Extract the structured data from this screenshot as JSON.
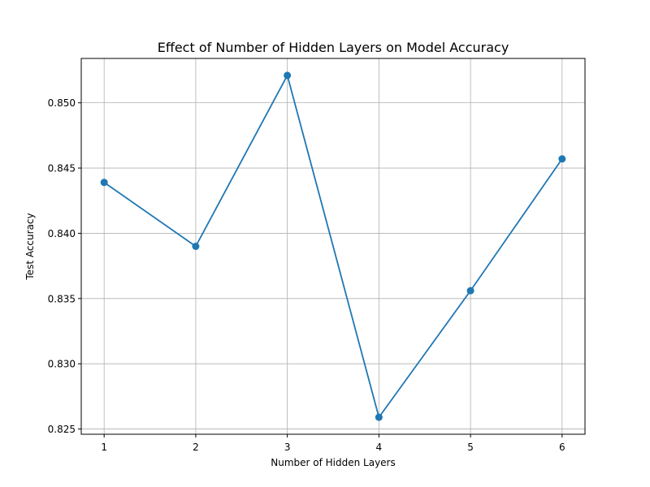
{
  "chart_data": {
    "type": "line",
    "title": "Effect of Number of Hidden Layers on Model Accuracy",
    "xlabel": "Number of Hidden Layers",
    "ylabel": "Test Accuracy",
    "x": [
      1,
      2,
      3,
      4,
      5,
      6
    ],
    "series": [
      {
        "values": [
          0.8439,
          0.839,
          0.8521,
          0.8259,
          0.8356,
          0.8457
        ]
      }
    ],
    "xlim": [
      0.75,
      6.25
    ],
    "ylim": [
      0.8246,
      0.8534
    ],
    "xticks": [
      "1",
      "2",
      "3",
      "4",
      "5",
      "6"
    ],
    "yticks": [
      "0.825",
      "0.830",
      "0.835",
      "0.840",
      "0.845",
      "0.850"
    ],
    "grid": true,
    "line_color": "#1f77b4",
    "marker": "circle"
  }
}
